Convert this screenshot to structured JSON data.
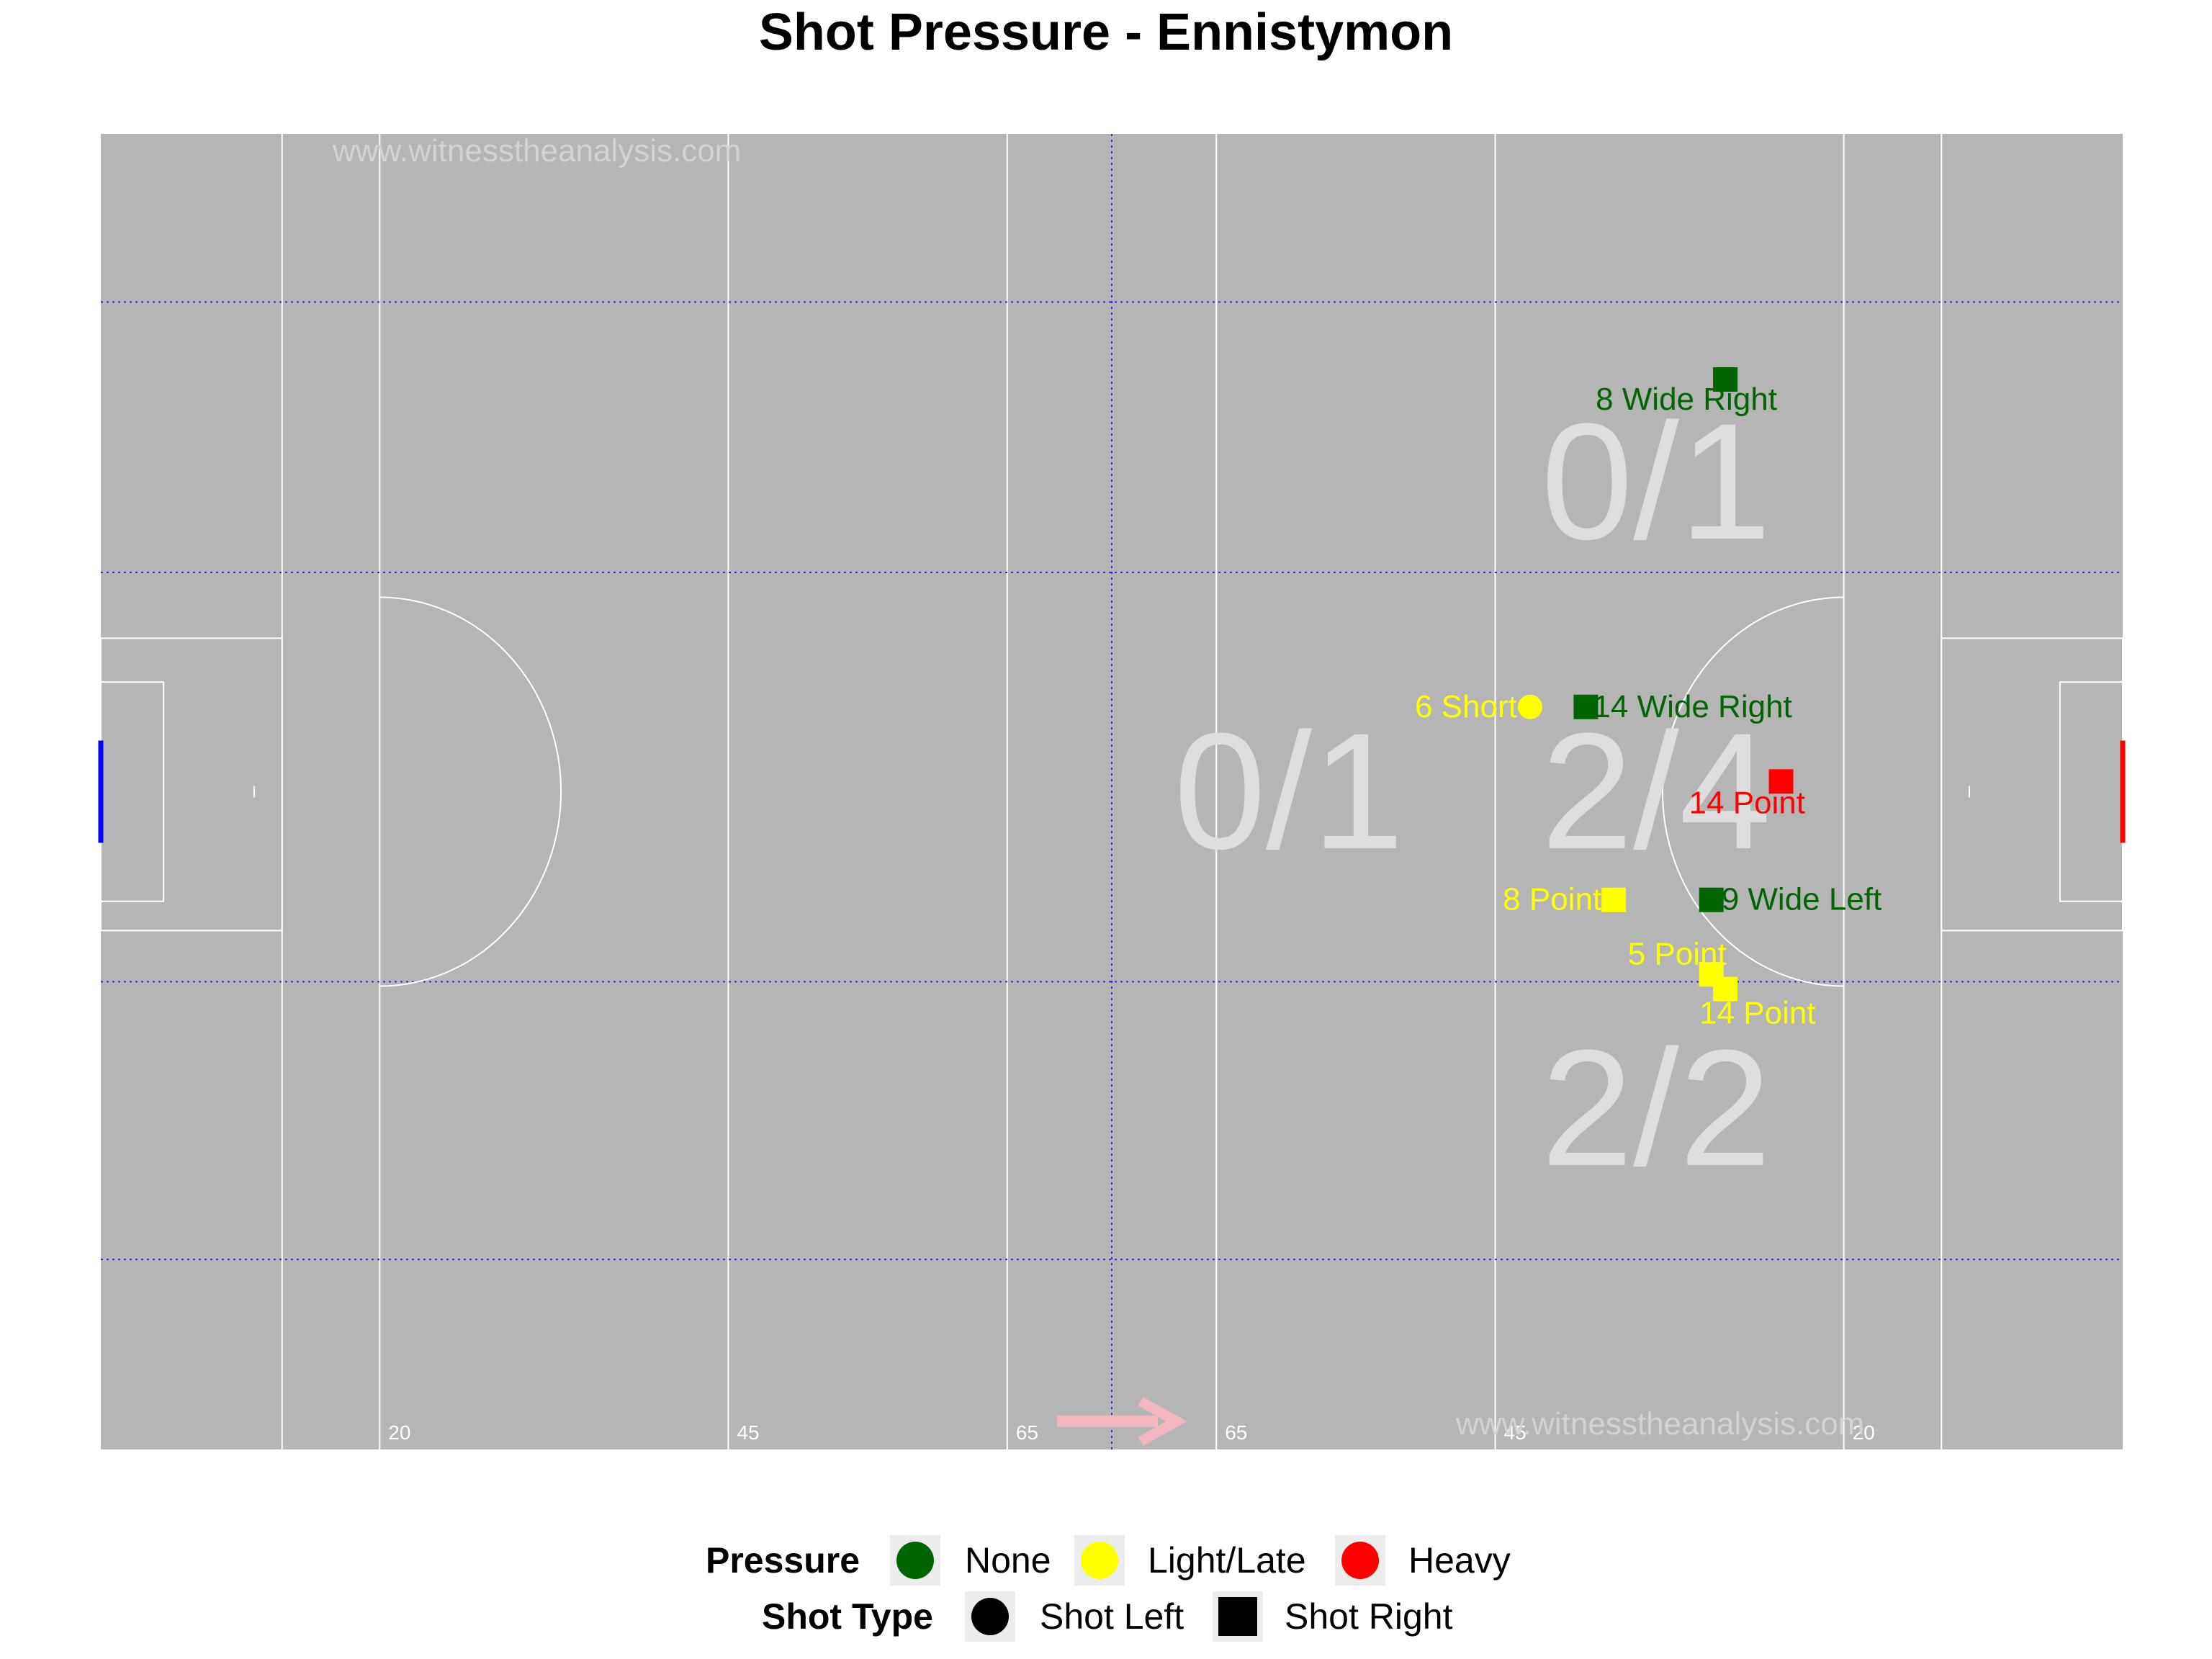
{
  "title": "Shot Pressure - Ennistymon",
  "watermarks": [
    "www.witnesstheanalysis.com",
    "www.witnesstheanalysis.com"
  ],
  "pitch": {
    "line_labels": [
      "20",
      "45",
      "65",
      "65",
      "45",
      "20"
    ],
    "zone_ratios": [
      {
        "text": "0/1",
        "zone": "left-centre"
      },
      {
        "text": "0/1",
        "zone": "right-top"
      },
      {
        "text": "2/4",
        "zone": "right-centre"
      },
      {
        "text": "2/2",
        "zone": "right-bottom"
      }
    ],
    "direction_arrow": "attack-right"
  },
  "colors": {
    "pitch": "#b5b5b5",
    "lines": "#ffffff",
    "grid": "#3030c8",
    "none": "#006400",
    "light": "#ffff00",
    "heavy": "#ff0000",
    "ratio_text": "#dedede",
    "left_goal": "#0000ff",
    "right_goal": "#ff0000",
    "arrow": "#f4b6be"
  },
  "chart_data": {
    "type": "scatter",
    "title": "Shot Pressure - Ennistymon",
    "xlim": [
      0,
      145
    ],
    "ylim": [
      0,
      90
    ],
    "x_reference_lines": [
      20,
      45,
      65,
      80,
      100,
      125
    ],
    "y_zone_lines": [
      13,
      32,
      60,
      78.5
    ],
    "points": [
      {
        "x": 116.5,
        "y": 73.2,
        "label": "8 Wide Right",
        "pressure": "None",
        "shot_type": "Shot Right"
      },
      {
        "x": 102.5,
        "y": 50.8,
        "label": "6 Short",
        "pressure": "Light/Late",
        "shot_type": "Shot Left"
      },
      {
        "x": 106.5,
        "y": 50.8,
        "label": "14 Wide Right",
        "pressure": "None",
        "shot_type": "Shot Right"
      },
      {
        "x": 120.5,
        "y": 45.7,
        "label": "14 Point",
        "pressure": "Heavy",
        "shot_type": "Shot Right"
      },
      {
        "x": 108.5,
        "y": 37.6,
        "label": "8 Point",
        "pressure": "Light/Late",
        "shot_type": "Shot Right"
      },
      {
        "x": 115.5,
        "y": 37.6,
        "label": "9 Wide Left",
        "pressure": "None",
        "shot_type": "Shot Right"
      },
      {
        "x": 115.5,
        "y": 32.5,
        "label": "5 Point",
        "pressure": "Light/Late",
        "shot_type": "Shot Right"
      },
      {
        "x": 116.5,
        "y": 31.5,
        "label": "14 Point",
        "pressure": "Light/Late",
        "shot_type": "Shot Right"
      }
    ]
  },
  "legend": {
    "pressure": {
      "title": "Pressure",
      "items": [
        {
          "label": "None",
          "color": "#006400"
        },
        {
          "label": "Light/Late",
          "color": "#ffff00"
        },
        {
          "label": "Heavy",
          "color": "#ff0000"
        }
      ]
    },
    "shot_type": {
      "title": "Shot Type",
      "items": [
        {
          "label": "Shot Left",
          "shape": "circle"
        },
        {
          "label": "Shot Right",
          "shape": "square"
        }
      ]
    }
  }
}
